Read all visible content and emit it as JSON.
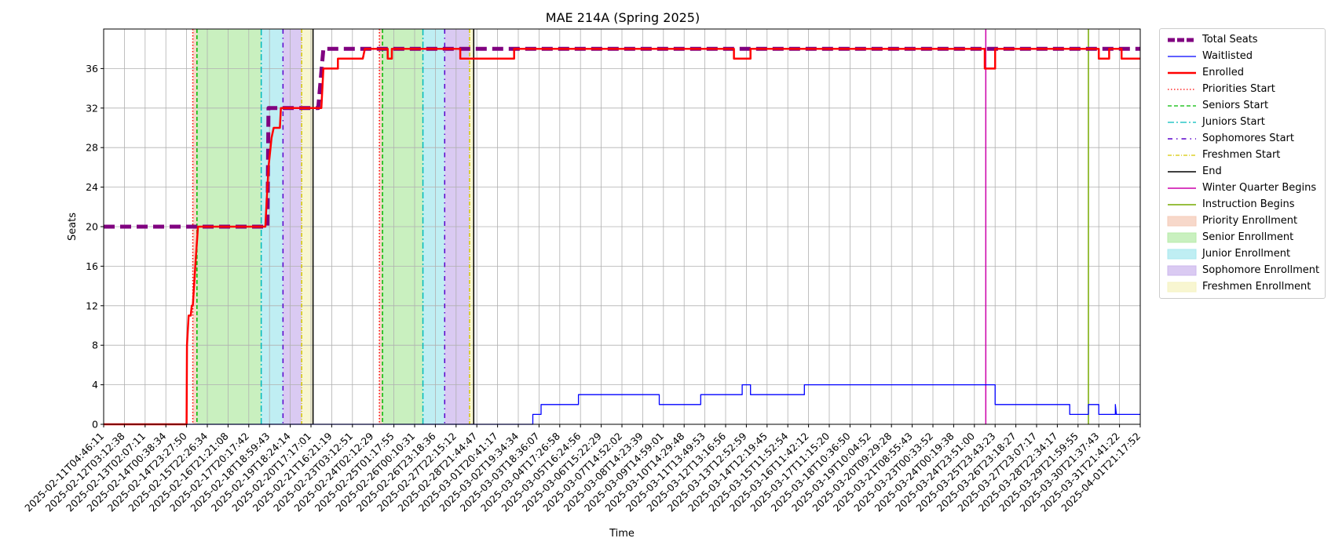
{
  "chart_data": {
    "type": "line",
    "title": "MAE 214A (Spring 2025)",
    "xlabel": "Time",
    "ylabel": "Seats",
    "ylim": [
      0,
      40
    ],
    "yticks": [
      0,
      4,
      8,
      12,
      16,
      20,
      24,
      28,
      32,
      36
    ],
    "grid": true,
    "legend_position": "outside-right",
    "x_tick_labels": [
      "2025-02-11T04:46:11",
      "2025-02-12T03:12:38",
      "2025-02-13T02:07:11",
      "2025-02-14T00:38:34",
      "2025-02-14T23:27:50",
      "2025-02-15T22:26:34",
      "2025-02-16T21:21:08",
      "2025-02-17T20:17:42",
      "2025-02-18T18:59:43",
      "2025-02-19T18:24:14",
      "2025-02-20T17:17:01",
      "2025-02-21T16:21:19",
      "2025-02-23T03:12:51",
      "2025-02-24T02:12:29",
      "2025-02-25T01:17:55",
      "2025-02-26T00:10:31",
      "2025-02-26T23:18:36",
      "2025-02-27T22:15:12",
      "2025-02-28T21:44:47",
      "2025-03-01T20:41:17",
      "2025-03-02T19:34:34",
      "2025-03-03T18:36:07",
      "2025-03-04T17:26:58",
      "2025-03-05T16:24:56",
      "2025-03-06T15:22:29",
      "2025-03-07T14:52:02",
      "2025-03-08T14:23:39",
      "2025-03-09T14:59:01",
      "2025-03-10T14:29:48",
      "2025-03-11T13:49:53",
      "2025-03-12T13:16:56",
      "2025-03-13T12:52:59",
      "2025-03-14T12:19:45",
      "2025-03-15T11:52:54",
      "2025-03-16T11:42:12",
      "2025-03-17T11:15:20",
      "2025-03-18T10:36:50",
      "2025-03-19T10:04:52",
      "2025-03-20T09:29:28",
      "2025-03-21T08:55:43",
      "2025-03-23T00:33:52",
      "2025-03-24T00:19:38",
      "2025-03-24T23:51:00",
      "2025-03-25T23:43:23",
      "2025-03-26T23:18:27",
      "2025-03-27T23:07:17",
      "2025-03-28T22:34:17",
      "2025-03-29T21:59:55",
      "2025-03-30T21:37:43",
      "2025-03-31T21:41:22",
      "2025-04-01T21:17:52"
    ],
    "x_range": [
      0,
      50
    ],
    "series": [
      {
        "name": "Total Seats",
        "color": "#800080",
        "style": "dashed-thick",
        "points": [
          [
            0,
            20
          ],
          [
            4.7,
            20
          ],
          [
            7.9,
            20
          ],
          [
            7.95,
            32
          ],
          [
            10.35,
            32
          ],
          [
            10.6,
            38
          ],
          [
            50,
            38
          ]
        ]
      },
      {
        "name": "Waitlisted",
        "color": "#0000ff",
        "style": "solid-thin",
        "points": [
          [
            0,
            0
          ],
          [
            20.7,
            0
          ],
          [
            20.7,
            1
          ],
          [
            21.1,
            1
          ],
          [
            21.1,
            2
          ],
          [
            22.9,
            2
          ],
          [
            22.9,
            3
          ],
          [
            26.8,
            3
          ],
          [
            26.8,
            2
          ],
          [
            28.8,
            2
          ],
          [
            28.8,
            3
          ],
          [
            30.8,
            3
          ],
          [
            30.8,
            4
          ],
          [
            31.2,
            4
          ],
          [
            31.2,
            3
          ],
          [
            33.8,
            3
          ],
          [
            33.8,
            4
          ],
          [
            43.0,
            4
          ],
          [
            43.0,
            2
          ],
          [
            46.6,
            2
          ],
          [
            46.6,
            1
          ],
          [
            47.5,
            1
          ],
          [
            47.5,
            2
          ],
          [
            48.0,
            2
          ],
          [
            48.0,
            1
          ],
          [
            48.8,
            1
          ],
          [
            48.8,
            2
          ],
          [
            48.85,
            1
          ],
          [
            50,
            1
          ]
        ]
      },
      {
        "name": "Enrolled",
        "color": "#ff0000",
        "style": "solid-thick",
        "points": [
          [
            0,
            0
          ],
          [
            4.0,
            0
          ],
          [
            4.02,
            8
          ],
          [
            4.1,
            11
          ],
          [
            4.2,
            11
          ],
          [
            4.25,
            12
          ],
          [
            4.3,
            12
          ],
          [
            4.45,
            17
          ],
          [
            4.55,
            20
          ],
          [
            7.8,
            20
          ],
          [
            7.85,
            22
          ],
          [
            7.95,
            26
          ],
          [
            8.05,
            28
          ],
          [
            8.1,
            29
          ],
          [
            8.2,
            30
          ],
          [
            8.5,
            30
          ],
          [
            8.55,
            32
          ],
          [
            10.5,
            32
          ],
          [
            10.6,
            36
          ],
          [
            11.3,
            36
          ],
          [
            11.3,
            37
          ],
          [
            12.5,
            37
          ],
          [
            12.6,
            38
          ],
          [
            13.7,
            38
          ],
          [
            13.7,
            37
          ],
          [
            13.9,
            37
          ],
          [
            13.9,
            38
          ],
          [
            17.2,
            38
          ],
          [
            17.2,
            37
          ],
          [
            19.8,
            37
          ],
          [
            19.8,
            38
          ],
          [
            30.4,
            38
          ],
          [
            30.4,
            37
          ],
          [
            31.2,
            37
          ],
          [
            31.2,
            38
          ],
          [
            42.5,
            38
          ],
          [
            42.5,
            36
          ],
          [
            43.0,
            36
          ],
          [
            43.0,
            38
          ],
          [
            48.0,
            38
          ],
          [
            48.0,
            37
          ],
          [
            48.5,
            37
          ],
          [
            48.5,
            38
          ],
          [
            49.1,
            38
          ],
          [
            49.1,
            37
          ],
          [
            50,
            37
          ]
        ]
      }
    ],
    "events": [
      {
        "name": "Priorities Start",
        "color": "#ff0000",
        "dash": "1.5,2.5",
        "x": [
          4.3,
          13.3
        ]
      },
      {
        "name": "Seniors Start",
        "color": "#00bb00",
        "dash": "5,3",
        "x": [
          4.5,
          13.45
        ]
      },
      {
        "name": "Juniors Start",
        "color": "#00bbbb",
        "dash": "8,3,2,3",
        "x": [
          7.6,
          15.4
        ]
      },
      {
        "name": "Sophomores Start",
        "color": "#5a00cc",
        "dash": "6,5,1.5,5",
        "x": [
          8.65,
          16.45
        ]
      },
      {
        "name": "Freshmen Start",
        "color": "#d6c800",
        "dash": "5,2,1,2",
        "x": [
          9.55,
          17.65
        ]
      },
      {
        "name": "End",
        "color": "#000000",
        "dash": "",
        "x": [
          10.1,
          17.85
        ]
      },
      {
        "name": "Winter Quarter Begins",
        "color": "#cc00aa",
        "dash": "",
        "x": [
          42.55
        ]
      },
      {
        "name": "Instruction Begins",
        "color": "#77aa00",
        "dash": "",
        "x": [
          47.5
        ]
      }
    ],
    "periods": [
      {
        "name": "Priority Enrollment",
        "color": "#f4cbb8",
        "ranges": [
          [
            4.3,
            4.5
          ],
          [
            13.3,
            13.45
          ]
        ]
      },
      {
        "name": "Senior Enrollment",
        "color": "#b7ebaa",
        "ranges": [
          [
            4.5,
            7.6
          ],
          [
            13.45,
            15.4
          ]
        ]
      },
      {
        "name": "Junior Enrollment",
        "color": "#a9e8ef",
        "ranges": [
          [
            7.6,
            8.65
          ],
          [
            15.4,
            16.45
          ]
        ]
      },
      {
        "name": "Sophomore Enrollment",
        "color": "#cdb8ee",
        "ranges": [
          [
            8.65,
            9.55
          ],
          [
            16.45,
            17.65
          ]
        ]
      },
      {
        "name": "Freshmen Enrollment",
        "color": "#f5f3c2",
        "ranges": [
          [
            9.55,
            10.1
          ],
          [
            17.65,
            17.85
          ]
        ]
      }
    ],
    "legend_entries": [
      {
        "label": "Total Seats",
        "kind": "line",
        "color": "#800080",
        "dash": "9,3",
        "width": 5
      },
      {
        "label": "Waitlisted",
        "kind": "line",
        "color": "#0000ff",
        "dash": "",
        "width": 1.2
      },
      {
        "label": "Enrolled",
        "kind": "line",
        "color": "#ff0000",
        "dash": "",
        "width": 2.5
      },
      {
        "label": "Priorities Start",
        "kind": "line",
        "color": "#ff0000",
        "dash": "1.5,2.5",
        "width": 1.3
      },
      {
        "label": "Seniors Start",
        "kind": "line",
        "color": "#00bb00",
        "dash": "5,3",
        "width": 1.3
      },
      {
        "label": "Juniors Start",
        "kind": "line",
        "color": "#00bbbb",
        "dash": "8,3,2,3",
        "width": 1.3
      },
      {
        "label": "Sophomores Start",
        "kind": "line",
        "color": "#5a00cc",
        "dash": "6,5,1.5,5",
        "width": 1.5
      },
      {
        "label": "Freshmen Start",
        "kind": "line",
        "color": "#d6c800",
        "dash": "5,2,1,2",
        "width": 1.3
      },
      {
        "label": "End",
        "kind": "line",
        "color": "#000000",
        "dash": "",
        "width": 1.5
      },
      {
        "label": "Winter Quarter Begins",
        "kind": "line",
        "color": "#cc00aa",
        "dash": "",
        "width": 1.5
      },
      {
        "label": "Instruction Begins",
        "kind": "line",
        "color": "#77aa00",
        "dash": "",
        "width": 1.5
      },
      {
        "label": "Priority Enrollment",
        "kind": "patch",
        "color": "#f4cbb8"
      },
      {
        "label": "Senior Enrollment",
        "kind": "patch",
        "color": "#b7ebaa"
      },
      {
        "label": "Junior Enrollment",
        "kind": "patch",
        "color": "#a9e8ef"
      },
      {
        "label": "Sophomore Enrollment",
        "kind": "patch",
        "color": "#cdb8ee"
      },
      {
        "label": "Freshmen Enrollment",
        "kind": "patch",
        "color": "#f5f3c2"
      }
    ]
  }
}
